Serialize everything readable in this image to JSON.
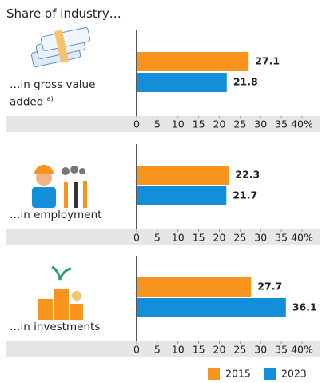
{
  "title": "Share of industry…",
  "chart_data": [
    {
      "type": "bar",
      "orientation": "horizontal",
      "categories": [
        "…in gross value added"
      ],
      "note": "a)",
      "series": [
        {
          "name": "2015",
          "color": "#f7941d",
          "values": [
            27.1
          ]
        },
        {
          "name": "2023",
          "color": "#128fd8",
          "values": [
            21.8
          ]
        }
      ],
      "xlim": [
        0,
        40
      ],
      "xticks": [
        0,
        5,
        10,
        15,
        20,
        25,
        30,
        35,
        {
          "value": 40,
          "label": "40%"
        }
      ]
    },
    {
      "type": "bar",
      "orientation": "horizontal",
      "categories": [
        "…in employment"
      ],
      "series": [
        {
          "name": "2015",
          "color": "#f7941d",
          "values": [
            22.3
          ]
        },
        {
          "name": "2023",
          "color": "#128fd8",
          "values": [
            21.7
          ]
        }
      ],
      "xlim": [
        0,
        40
      ],
      "xticks": [
        0,
        5,
        10,
        15,
        20,
        25,
        30,
        35,
        {
          "value": 40,
          "label": "40%"
        }
      ]
    },
    {
      "type": "bar",
      "orientation": "horizontal",
      "categories": [
        "…in investments"
      ],
      "series": [
        {
          "name": "2015",
          "color": "#f7941d",
          "values": [
            27.7
          ]
        },
        {
          "name": "2023",
          "color": "#128fd8",
          "values": [
            36.1
          ]
        }
      ],
      "xlim": [
        0,
        40
      ],
      "xticks": [
        0,
        5,
        10,
        15,
        20,
        25,
        30,
        35,
        {
          "value": 40,
          "label": "40%"
        }
      ]
    }
  ]
}
